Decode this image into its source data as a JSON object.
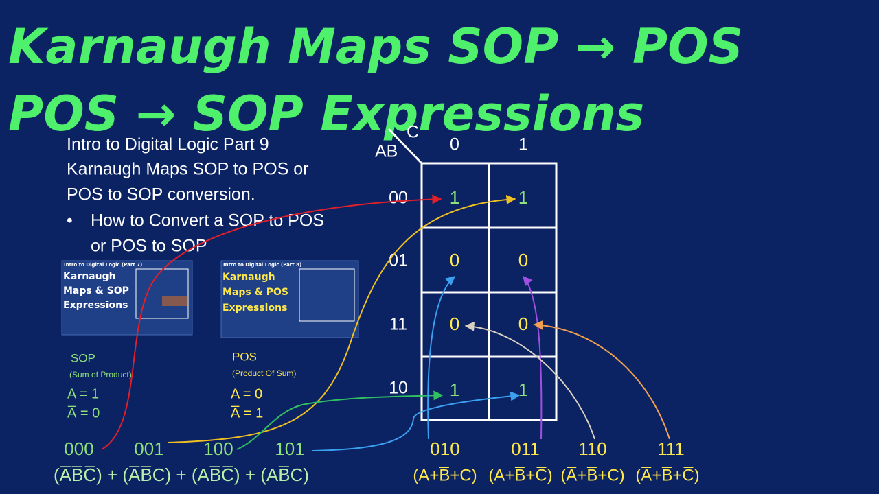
{
  "title": {
    "line1": "Karnaugh Maps SOP → POS",
    "line2": "POS → SOP Expressions"
  },
  "intro": {
    "lines": [
      "Intro to Digital Logic Part 9",
      "Karnaugh Maps SOP to POS or",
      "POS to SOP conversion."
    ],
    "bullet": [
      "How to Convert a SOP to POS",
      "or POS to SOP"
    ]
  },
  "kmap": {
    "corner_col": "C",
    "corner_row": "AB",
    "col_headers": [
      "0",
      "1"
    ],
    "row_headers": [
      "00",
      "01",
      "11",
      "10"
    ],
    "cells": [
      [
        "1",
        "1"
      ],
      [
        "0",
        "0"
      ],
      [
        "0",
        "0"
      ],
      [
        "1",
        "1"
      ]
    ]
  },
  "thumbnails": [
    {
      "caption": "Intro to Digital Logic (Part 7)",
      "title": [
        "Karnaugh",
        "Maps & SOP",
        "Expressions"
      ]
    },
    {
      "caption": "Intro to Digital Logic (Part 8)",
      "title": [
        "Karnaugh",
        "Maps & POS",
        "Expressions"
      ]
    }
  ],
  "sop": {
    "title": "SOP",
    "subtitle": "(Sum of Product)",
    "rules": [
      "A = 1",
      "A̅ = 0"
    ]
  },
  "pos": {
    "title": "POS",
    "subtitle": "(Product Of Sum)",
    "rules": [
      "A = 0",
      "A̅ = 1"
    ]
  },
  "minterms": {
    "codes": [
      "000",
      "001",
      "100",
      "101"
    ],
    "expression": "(A̅B̅C̅) + (A̅B̅C) + (AB̅C̅) + (AB̅C)"
  },
  "maxterms": {
    "codes": [
      "010",
      "011",
      "110",
      "111"
    ],
    "terms": [
      "(A+B̅+C)",
      "(A+B̅+C̅)",
      "(A̅+B̅+C)",
      "(A̅+B̅+C̅)"
    ]
  }
}
